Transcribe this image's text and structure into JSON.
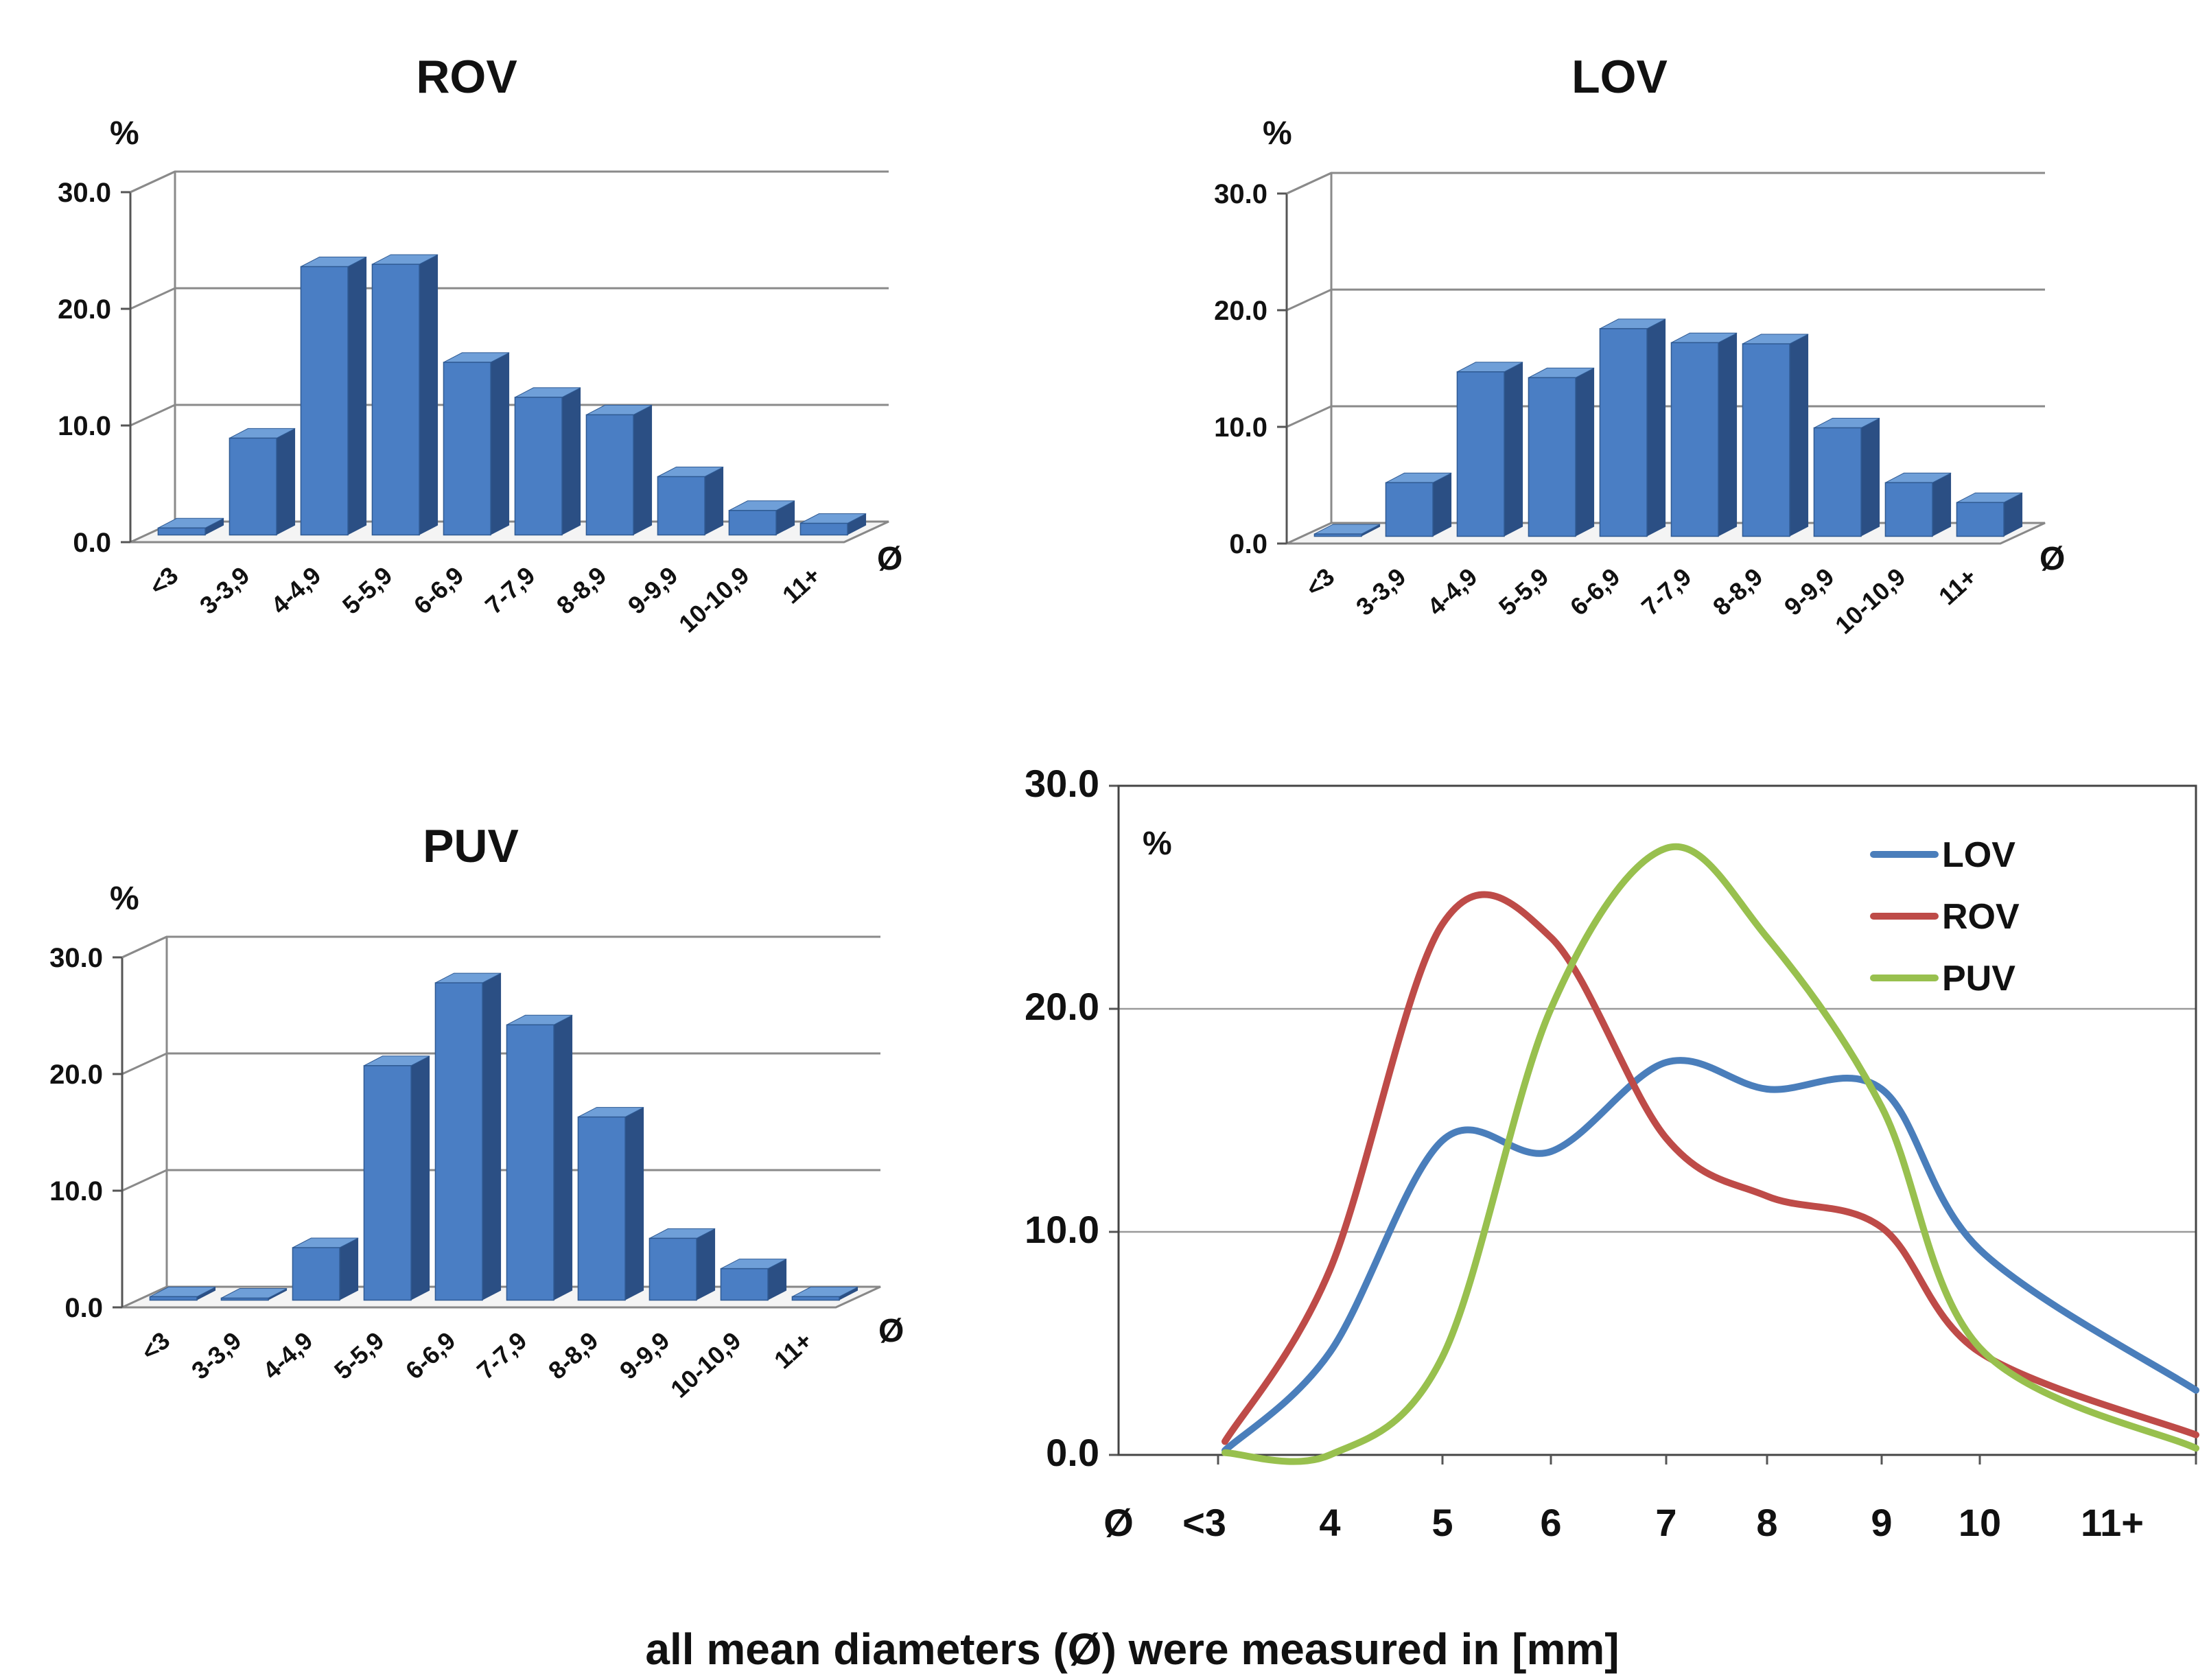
{
  "chart_data": [
    {
      "type": "bar",
      "title": "ROV",
      "ylabel": "%",
      "xlabel": "Ø",
      "ylim": [
        0,
        30
      ],
      "yticks": [
        "0.0",
        "10.0",
        "20.0",
        "30.0"
      ],
      "categories": [
        "<3",
        "3-3,9",
        "4-4,9",
        "5-5,9",
        "6-6,9",
        "7-7,9",
        "8-8,9",
        "9-9,9",
        "10-10,9",
        "11+"
      ],
      "values": [
        0.6,
        8.3,
        23.0,
        23.2,
        14.8,
        11.8,
        10.3,
        5.0,
        2.1,
        1.0
      ]
    },
    {
      "type": "bar",
      "title": "LOV",
      "ylabel": "%",
      "xlabel": "Ø",
      "ylim": [
        0,
        30
      ],
      "yticks": [
        "0.0",
        "10.0",
        "20.0",
        "30.0"
      ],
      "categories": [
        "<3",
        "3-3,9",
        "4-4,9",
        "5-5,9",
        "6-6,9",
        "7-7,9",
        "8-8,9",
        "9-9,9",
        "10-10,9",
        "11+"
      ],
      "values": [
        0.2,
        4.6,
        14.1,
        13.6,
        17.8,
        16.6,
        16.5,
        9.3,
        4.6,
        2.9
      ]
    },
    {
      "type": "bar",
      "title": "PUV",
      "ylabel": "%",
      "xlabel": "Ø",
      "ylim": [
        0,
        30
      ],
      "yticks": [
        "0.0",
        "10.0",
        "20.0",
        "30.0"
      ],
      "categories": [
        "<3",
        "3-3,9",
        "4-4,9",
        "5-5,9",
        "6-6,9",
        "7-7,9",
        "8-8,9",
        "9-9,9",
        "10-10,9",
        "11+"
      ],
      "values": [
        0.3,
        0.1,
        4.5,
        20.1,
        27.2,
        23.6,
        15.7,
        5.3,
        2.7,
        0.3
      ]
    },
    {
      "type": "line",
      "ylabel": "%",
      "ylim": [
        0,
        30
      ],
      "yticks": [
        "0.0",
        "10.0",
        "20.0",
        "30.0"
      ],
      "x_label": "Ø",
      "categories": [
        "<3",
        "4",
        "5",
        "6",
        "7",
        "8",
        "9",
        "10",
        "11+"
      ],
      "x": [
        0,
        1,
        2,
        3,
        4,
        5,
        6,
        7,
        8
      ],
      "legend_position": "top-right",
      "series": [
        {
          "name": "LOV",
          "color": "#4a7ebb",
          "values": [
            0.2,
            4.6,
            14.1,
            13.6,
            17.6,
            16.4,
            16.4,
            9.2,
            2.9
          ]
        },
        {
          "name": "ROV",
          "color": "#be4b48",
          "values": [
            0.6,
            8.3,
            23.8,
            23.2,
            14.2,
            11.6,
            10.2,
            4.6,
            0.9
          ]
        },
        {
          "name": "PUV",
          "color": "#98c04e",
          "values": [
            0.1,
            0.0,
            4.4,
            20.0,
            27.2,
            23.2,
            15.6,
            4.8,
            0.3
          ]
        }
      ]
    }
  ],
  "caption": "all mean diameters (Ø) were measured in [mm]"
}
